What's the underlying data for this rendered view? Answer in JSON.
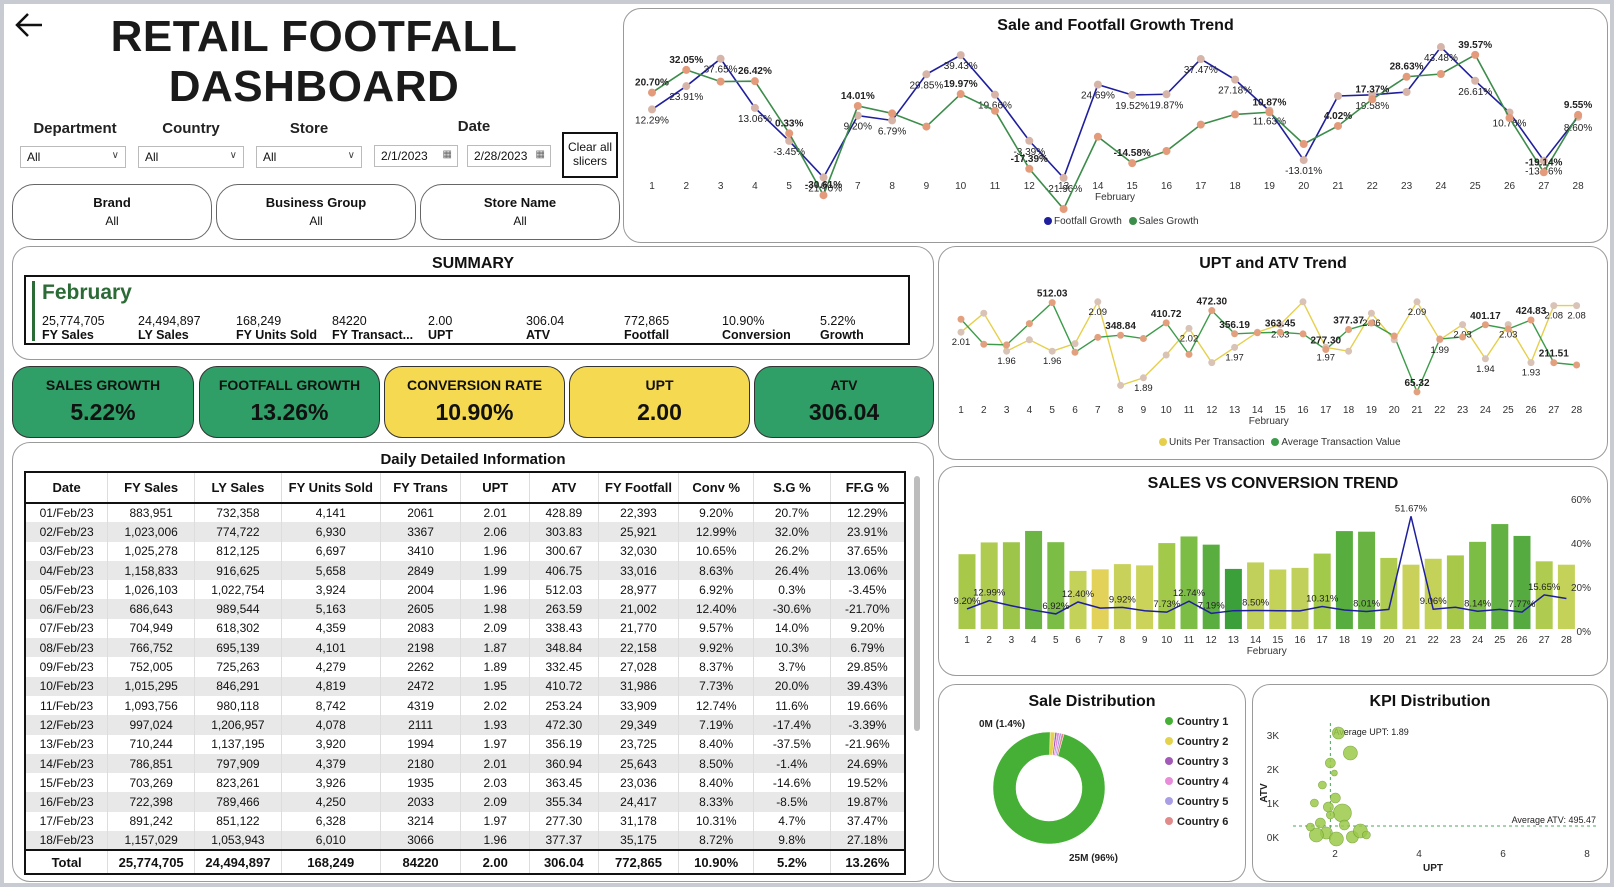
{
  "header": {
    "title_line1": "RETAIL FOOTFALL",
    "title_line2": "DASHBOARD",
    "back_icon": "arrow-left-icon"
  },
  "slicers": {
    "department": {
      "label": "Department",
      "value": "All"
    },
    "country": {
      "label": "Country",
      "value": "All"
    },
    "store": {
      "label": "Store",
      "value": "All"
    },
    "date": {
      "label": "Date",
      "start": "2/1/2023",
      "end": "2/28/2023"
    },
    "clear_label_1": "Clear all",
    "clear_label_2": "slicers",
    "brand": {
      "label": "Brand",
      "value": "All"
    },
    "business_group": {
      "label": "Business Group",
      "value": "All"
    },
    "store_name": {
      "label": "Store Name",
      "value": "All"
    }
  },
  "summary": {
    "title": "SUMMARY",
    "month": "February",
    "items": [
      {
        "value": "25,774,705",
        "label": "FY Sales"
      },
      {
        "value": "24,494,897",
        "label": "LY Sales"
      },
      {
        "value": "168,249",
        "label": "FY Units Sold"
      },
      {
        "value": "84220",
        "label": "FY Transact..."
      },
      {
        "value": "2.00",
        "label": "UPT"
      },
      {
        "value": "306.04",
        "label": "ATV"
      },
      {
        "value": "772,865",
        "label": "Footfall"
      },
      {
        "value": "10.90%",
        "label": "Conversion"
      },
      {
        "value": "5.22%",
        "label": "Growth"
      }
    ]
  },
  "kpis": [
    {
      "label": "SALES GROWTH",
      "value": "5.22%",
      "color": "#2f9e67"
    },
    {
      "label": "FOOTFALL GROWTH",
      "value": "13.26%",
      "color": "#2f9e67"
    },
    {
      "label": "CONVERSION RATE",
      "value": "10.90%",
      "color": "#f5d951"
    },
    {
      "label": "UPT",
      "value": "2.00",
      "color": "#f5d951"
    },
    {
      "label": "ATV",
      "value": "306.04",
      "color": "#2f9e67"
    }
  ],
  "table": {
    "title": "Daily Detailed Information",
    "columns": [
      "Date",
      "FY Sales",
      "LY Sales",
      "FY Units Sold",
      "FY Trans",
      "UPT",
      "ATV",
      "FY Footfall",
      "Conv %",
      "S.G %",
      "FF.G %"
    ],
    "rows": [
      [
        "01/Feb/23",
        "883,951",
        "732,358",
        "4,141",
        "2061",
        "2.01",
        "428.89",
        "22,393",
        "9.20%",
        "20.7%",
        "12.29%"
      ],
      [
        "02/Feb/23",
        "1,023,006",
        "774,722",
        "6,930",
        "3367",
        "2.06",
        "303.83",
        "25,921",
        "12.99%",
        "32.0%",
        "23.91%"
      ],
      [
        "03/Feb/23",
        "1,025,278",
        "812,125",
        "6,697",
        "3410",
        "1.96",
        "300.67",
        "32,030",
        "10.65%",
        "26.2%",
        "37.65%"
      ],
      [
        "04/Feb/23",
        "1,158,833",
        "916,625",
        "5,658",
        "2849",
        "1.99",
        "406.75",
        "33,016",
        "8.63%",
        "26.4%",
        "13.06%"
      ],
      [
        "05/Feb/23",
        "1,026,103",
        "1,022,754",
        "3,924",
        "2004",
        "1.96",
        "512.03",
        "28,977",
        "6.92%",
        "0.3%",
        "-3.45%"
      ],
      [
        "06/Feb/23",
        "686,643",
        "989,544",
        "5,163",
        "2605",
        "1.98",
        "263.59",
        "21,002",
        "12.40%",
        "-30.6%",
        "-21.70%"
      ],
      [
        "07/Feb/23",
        "704,949",
        "618,302",
        "4,359",
        "2083",
        "2.09",
        "338.43",
        "21,770",
        "9.57%",
        "14.0%",
        "9.20%"
      ],
      [
        "08/Feb/23",
        "766,752",
        "695,139",
        "4,101",
        "2198",
        "1.87",
        "348.84",
        "22,158",
        "9.92%",
        "10.3%",
        "6.79%"
      ],
      [
        "09/Feb/23",
        "752,005",
        "725,263",
        "4,279",
        "2262",
        "1.89",
        "332.45",
        "27,028",
        "8.37%",
        "3.7%",
        "29.85%"
      ],
      [
        "10/Feb/23",
        "1,015,295",
        "846,291",
        "4,819",
        "2472",
        "1.95",
        "410.72",
        "31,986",
        "7.73%",
        "20.0%",
        "39.43%"
      ],
      [
        "11/Feb/23",
        "1,093,756",
        "980,118",
        "8,742",
        "4319",
        "2.02",
        "253.24",
        "33,909",
        "12.74%",
        "11.6%",
        "19.66%"
      ],
      [
        "12/Feb/23",
        "997,024",
        "1,206,957",
        "4,078",
        "2111",
        "1.93",
        "472.30",
        "29,349",
        "7.19%",
        "-17.4%",
        "-3.39%"
      ],
      [
        "13/Feb/23",
        "710,244",
        "1,137,195",
        "3,920",
        "1994",
        "1.97",
        "356.19",
        "23,725",
        "8.40%",
        "-37.5%",
        "-21.96%"
      ],
      [
        "14/Feb/23",
        "786,851",
        "797,909",
        "4,379",
        "2180",
        "2.01",
        "360.94",
        "25,643",
        "8.50%",
        "-1.4%",
        "24.69%"
      ],
      [
        "15/Feb/23",
        "703,269",
        "823,261",
        "3,926",
        "1935",
        "2.03",
        "363.45",
        "23,036",
        "8.40%",
        "-14.6%",
        "19.52%"
      ],
      [
        "16/Feb/23",
        "722,398",
        "789,466",
        "4,250",
        "2033",
        "2.09",
        "355.34",
        "24,417",
        "8.33%",
        "-8.5%",
        "19.87%"
      ],
      [
        "17/Feb/23",
        "891,242",
        "851,122",
        "6,328",
        "3214",
        "1.97",
        "277.30",
        "31,178",
        "10.31%",
        "4.7%",
        "37.47%"
      ],
      [
        "18/Feb/23",
        "1,157,029",
        "1,053,943",
        "6,010",
        "3066",
        "1.96",
        "377.37",
        "35,175",
        "8.72%",
        "9.8%",
        "27.18%"
      ]
    ],
    "total": [
      "Total",
      "25,774,705",
      "24,494,897",
      "168,249",
      "84220",
      "2.00",
      "306.04",
      "772,865",
      "10.90%",
      "5.2%",
      "13.26%"
    ]
  },
  "growth_chart": {
    "title": "Sale and Footfall Growth Trend",
    "xlabel": "February",
    "legend": [
      "Footfall Growth",
      "Sales Growth"
    ],
    "colors": {
      "footfall": "#1f1f9e",
      "sales": "#3c8c4a"
    }
  },
  "upt_chart": {
    "title": "UPT and ATV Trend",
    "xlabel": "February",
    "legend": [
      "Units Per Transaction",
      "Average Transaction Value"
    ],
    "colors": {
      "upt": "#e6cf4a",
      "atv": "#3c9c4a"
    }
  },
  "conv_chart": {
    "title": "SALES VS CONVERSION TREND",
    "xlabel": "February",
    "yticks": [
      "60%",
      "40%",
      "20%",
      "0%"
    ]
  },
  "pie_chart": {
    "title": "Sale Distribution",
    "labels": [
      "0M (1.4%)",
      "25M (96%)"
    ],
    "legend": [
      "Country 1",
      "Country 2",
      "Country 3",
      "Country 4",
      "Country 5",
      "Country 6"
    ],
    "colors": [
      "#45b035",
      "#e3d24c",
      "#a25ab6",
      "#e88bd8",
      "#a99ee6",
      "#e08a8a"
    ]
  },
  "kpi_chart": {
    "title": "KPI Distribution",
    "xlabel": "UPT",
    "ylabel": "ATV",
    "yticks": [
      "3K",
      "2K",
      "1K",
      "0K"
    ],
    "xticks": [
      "2",
      "4",
      "6",
      "8"
    ],
    "avg_upt_label": "Average UPT: 1.89",
    "avg_atv_label": "Average ATV: 495.47"
  },
  "chart_data": [
    {
      "type": "line",
      "title": "Sale and Footfall Growth Trend",
      "xlabel": "February",
      "x": [
        1,
        2,
        3,
        4,
        5,
        6,
        7,
        8,
        9,
        10,
        11,
        12,
        13,
        14,
        15,
        16,
        17,
        18,
        19,
        20,
        21,
        22,
        23,
        24,
        25,
        26,
        27,
        28
      ],
      "series": [
        {
          "name": "Footfall Growth",
          "values": [
            12.29,
            23.91,
            37.65,
            13.06,
            -3.45,
            -21.7,
            9.2,
            6.79,
            29.85,
            39.43,
            19.66,
            -3.39,
            -21.96,
            24.69,
            19.52,
            19.87,
            37.47,
            27.18,
            11.63,
            -13.01,
            19.0,
            19.58,
            21.0,
            43.48,
            26.61,
            10.76,
            -13.36,
            8.6
          ]
        },
        {
          "name": "Sales Growth",
          "values": [
            20.7,
            32.05,
            26.2,
            26.42,
            0.33,
            -30.61,
            14.01,
            10.3,
            3.7,
            19.97,
            11.6,
            -17.39,
            -37.5,
            -1.4,
            -14.58,
            -8.5,
            4.7,
            9.8,
            10.87,
            -5.0,
            4.02,
            17.37,
            28.63,
            30.0,
            39.57,
            8.0,
            -19.14,
            9.55
          ]
        }
      ]
    },
    {
      "type": "line",
      "title": "UPT and ATV Trend",
      "xlabel": "February",
      "x": [
        1,
        2,
        3,
        4,
        5,
        6,
        7,
        8,
        9,
        10,
        11,
        12,
        13,
        14,
        15,
        16,
        17,
        18,
        19,
        20,
        21,
        22,
        23,
        24,
        25,
        26,
        27,
        28
      ],
      "series": [
        {
          "name": "Units Per Transaction",
          "values": [
            2.01,
            2.06,
            1.96,
            1.99,
            1.96,
            1.98,
            2.09,
            1.87,
            1.89,
            1.95,
            2.02,
            1.93,
            1.97,
            2.01,
            2.03,
            2.09,
            1.97,
            1.96,
            2.06,
            1.99,
            2.09,
            1.99,
            2.03,
            1.94,
            2.03,
            1.93,
            2.08,
            2.08
          ]
        },
        {
          "name": "Average Transaction Value",
          "values": [
            428.89,
            303.83,
            300.67,
            406.75,
            512.03,
            263.59,
            338.43,
            348.84,
            332.45,
            410.72,
            253.24,
            472.3,
            356.19,
            360.94,
            363.45,
            355.34,
            277.3,
            377.37,
            410.0,
            345.0,
            65.32,
            330.0,
            340.0,
            401.17,
            380.0,
            424.83,
            211.51,
            200.0
          ]
        }
      ]
    },
    {
      "type": "bar",
      "title": "SALES VS CONVERSION TREND",
      "xlabel": "February",
      "categories": [
        1,
        2,
        3,
        4,
        5,
        6,
        7,
        8,
        9,
        10,
        11,
        12,
        13,
        14,
        15,
        16,
        17,
        18,
        19,
        20,
        21,
        22,
        23,
        24,
        25,
        26,
        27,
        28
      ],
      "series": [
        {
          "name": "",
          "values": [
            883951,
            1023006,
            1025278,
            1158833,
            1026103,
            686643,
            704949,
            766752,
            752005,
            1015295,
            1093756,
            997024,
            710244,
            786851,
            703269,
            722398,
            891242,
            1157029,
            1150000,
            840000,
            760000,
            830000,
            870000,
            1030000,
            1240000,
            1100000,
            800000,
            760000
          ]
        },
        {
          "name": "",
          "values": [
            9.2,
            12.99,
            10.65,
            8.63,
            6.92,
            12.4,
            9.57,
            9.92,
            8.37,
            7.73,
            12.74,
            7.19,
            8.4,
            8.5,
            8.4,
            8.33,
            10.31,
            8.72,
            8.01,
            9.0,
            51.67,
            9.06,
            10.0,
            8.14,
            9.0,
            7.77,
            15.65,
            14.0
          ]
        }
      ],
      "data_labels": [
        "9.20%",
        "12.99%",
        "6.92%",
        "12.40%",
        "9.92%",
        "7.73%",
        "12.74%",
        "7.19%",
        "8.50%",
        "10.31%",
        "8.01%",
        "51.67%",
        "9.06%",
        "8.14%",
        "7.77%",
        "15.65%"
      ],
      "yticks": [
        "0%",
        "20%",
        "40%",
        "60%"
      ]
    },
    {
      "type": "pie",
      "title": "Sale Distribution",
      "categories": [
        "Country 1",
        "Country 2",
        "Country 3",
        "Country 4",
        "Country 5",
        "Country 6"
      ],
      "values": [
        96.0,
        1.4,
        0.6,
        0.7,
        0.6,
        0.7
      ]
    },
    {
      "type": "scatter",
      "title": "KPI Distribution",
      "xlabel": "UPT",
      "ylabel": "ATV"
    }
  ]
}
